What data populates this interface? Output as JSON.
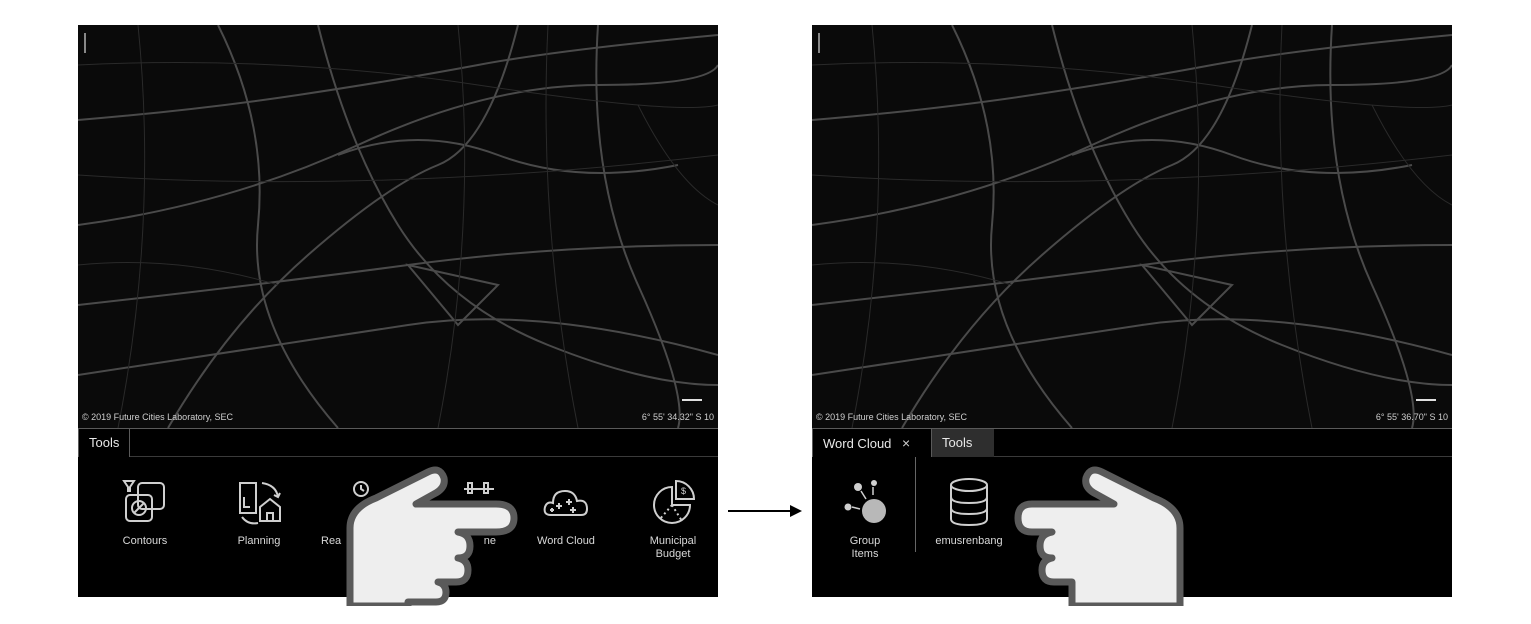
{
  "left": {
    "attribution": "© 2019 Future Cities Laboratory, SEC",
    "coords": "6° 55' 34.32\" S 10",
    "tabs": [
      {
        "label": "Tools"
      }
    ],
    "tools": [
      {
        "label": "Contours",
        "icon": "contours-icon"
      },
      {
        "label": "Planning",
        "icon": "planning-icon"
      },
      {
        "label": "Rea",
        "icon": "realtime-icon"
      },
      {
        "label": "ne",
        "icon": "timeline-icon"
      },
      {
        "label": "Word Cloud",
        "icon": "word-cloud-icon"
      },
      {
        "label": "Municipal\nBudget",
        "icon": "municipal-budget-icon"
      }
    ]
  },
  "right": {
    "attribution": "© 2019 Future Cities Laboratory, SEC",
    "coords": "6° 55' 36.70\" S 10",
    "tabs": [
      {
        "label": "Word Cloud",
        "close": "×"
      },
      {
        "label": "Tools"
      }
    ],
    "tools": [
      {
        "label": "Group\nItems",
        "icon": "group-items-icon"
      },
      {
        "label": "emusrenbang",
        "icon": "database-icon"
      }
    ]
  },
  "colors": {
    "background": "#000000",
    "text": "#e8e8e8",
    "inactive_tab": "#2e2e2e",
    "hand_fill": "#eeeeee",
    "hand_stroke": "#5a5a5a"
  }
}
